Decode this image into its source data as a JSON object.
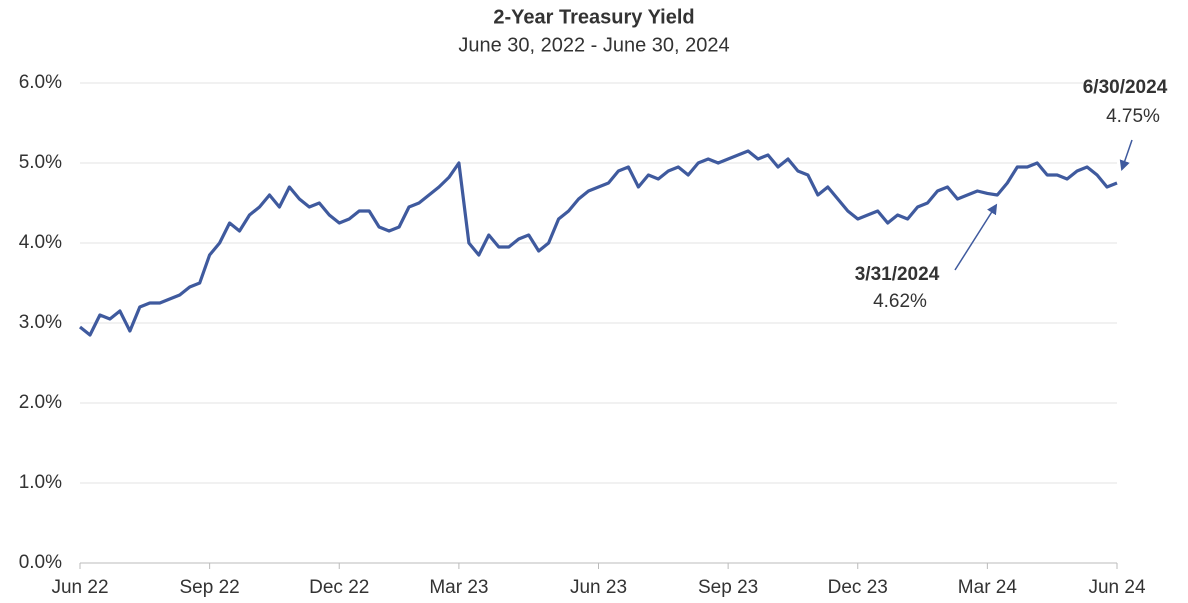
{
  "chart_data": {
    "type": "line",
    "title": "2-Year Treasury Yield",
    "subtitle": "June 30, 2022 - June 30, 2024",
    "categories": [
      "Jun 22",
      null,
      null,
      null,
      null,
      null,
      null,
      null,
      null,
      null,
      null,
      null,
      null,
      "Sep 22",
      null,
      null,
      null,
      null,
      null,
      null,
      null,
      null,
      null,
      null,
      null,
      null,
      "Dec 22",
      null,
      null,
      null,
      null,
      null,
      null,
      null,
      null,
      null,
      null,
      null,
      "Mar 23",
      null,
      null,
      null,
      null,
      null,
      null,
      null,
      null,
      null,
      null,
      null,
      null,
      null,
      "Jun 23",
      null,
      null,
      null,
      null,
      null,
      null,
      null,
      null,
      null,
      null,
      null,
      null,
      "Sep 23",
      null,
      null,
      null,
      null,
      null,
      null,
      null,
      null,
      null,
      null,
      null,
      null,
      "Dec 23",
      null,
      null,
      null,
      null,
      null,
      null,
      null,
      null,
      null,
      null,
      null,
      null,
      "Mar 24",
      null,
      null,
      null,
      null,
      null,
      null,
      null,
      null,
      null,
      null,
      null,
      null,
      "Jun 24"
    ],
    "series": [
      {
        "name": "2-Year Treasury Yield",
        "color": "#3f5a9e",
        "values": [
          2.95,
          2.85,
          3.1,
          3.05,
          3.15,
          2.9,
          3.2,
          3.25,
          3.25,
          3.3,
          3.35,
          3.45,
          3.5,
          3.85,
          4.0,
          4.25,
          4.15,
          4.35,
          4.45,
          4.6,
          4.45,
          4.7,
          4.55,
          4.45,
          4.5,
          4.35,
          4.25,
          4.3,
          4.4,
          4.4,
          4.2,
          4.15,
          4.2,
          4.45,
          4.5,
          4.6,
          4.7,
          4.82,
          5.0,
          4.0,
          3.85,
          4.1,
          3.95,
          3.95,
          4.05,
          4.1,
          3.9,
          4.0,
          4.3,
          4.4,
          4.55,
          4.65,
          4.7,
          4.75,
          4.9,
          4.95,
          4.7,
          4.85,
          4.8,
          4.9,
          4.95,
          4.85,
          5.0,
          5.05,
          5.0,
          5.05,
          5.1,
          5.15,
          5.05,
          5.1,
          4.95,
          5.05,
          4.9,
          4.85,
          4.6,
          4.7,
          4.55,
          4.4,
          4.3,
          4.35,
          4.4,
          4.25,
          4.35,
          4.3,
          4.45,
          4.5,
          4.65,
          4.7,
          4.55,
          4.6,
          4.65,
          4.62,
          4.6,
          4.75,
          4.95,
          4.95,
          5.0,
          4.85,
          4.85,
          4.8,
          4.9,
          4.95,
          4.85,
          4.7,
          4.75
        ]
      }
    ],
    "ylim": [
      0,
      6
    ],
    "yticks": [
      {
        "value": 0,
        "label": "0.0%"
      },
      {
        "value": 1,
        "label": "1.0%"
      },
      {
        "value": 2,
        "label": "2.0%"
      },
      {
        "value": 3,
        "label": "3.0%"
      },
      {
        "value": 4,
        "label": "4.0%"
      },
      {
        "value": 5,
        "label": "5.0%"
      },
      {
        "value": 6,
        "label": "6.0%"
      }
    ],
    "grid": true,
    "annotations": [
      {
        "date": "6/30/2024",
        "value": 4.75,
        "label": "4.75%"
      },
      {
        "date": "3/31/2024",
        "value": 4.62,
        "label": "4.62%"
      }
    ]
  }
}
